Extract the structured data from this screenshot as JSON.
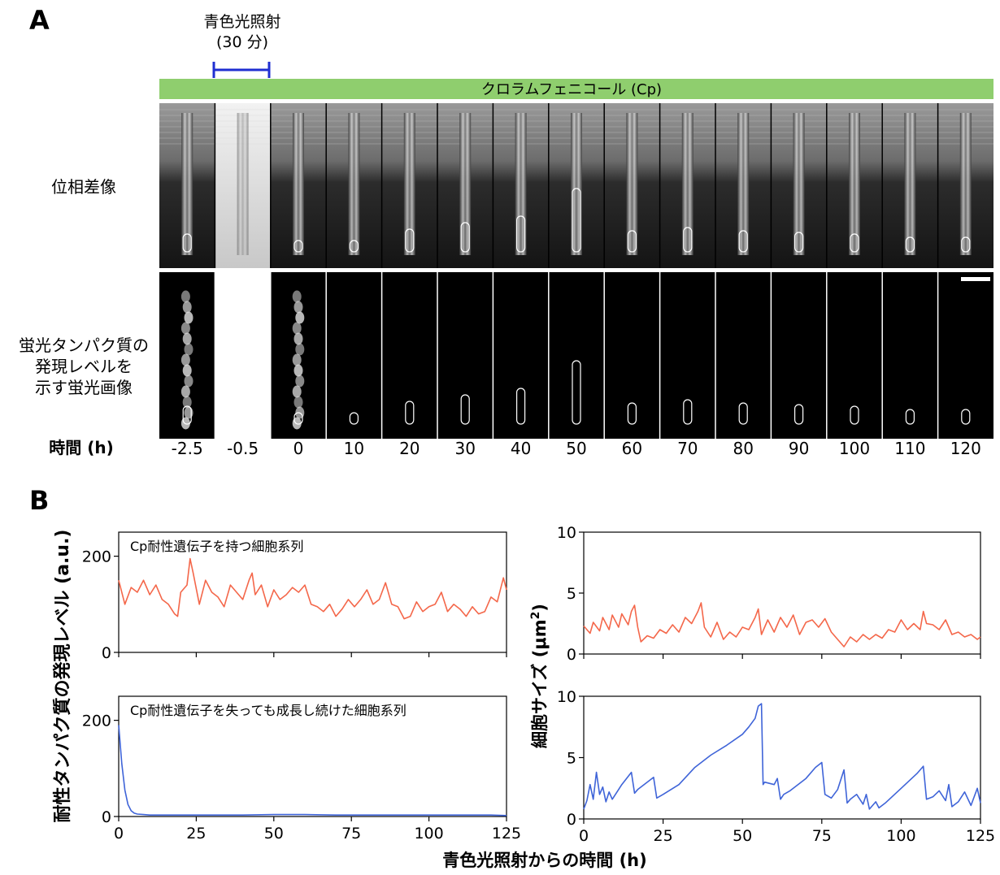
{
  "panel_a": {
    "letter": "A",
    "illumination_label_line1": "青色光照射",
    "illumination_label_line2": "(30 分)",
    "cp_bar_label": "クロラムフェニコール (Cp)",
    "row_phase_label": "位相差像",
    "row_fluor_line1": "蛍光タンパク質の",
    "row_fluor_line2": "発現レベルを",
    "row_fluor_line3": "示す蛍光画像",
    "time_label": "時間 (h)",
    "times": [
      "-2.5",
      "-0.5",
      "0",
      "10",
      "20",
      "30",
      "40",
      "50",
      "60",
      "70",
      "80",
      "90",
      "100",
      "110",
      "120"
    ],
    "fluor_visible": [
      true,
      false,
      true,
      false,
      false,
      false,
      false,
      false,
      false,
      false,
      false,
      false,
      false,
      false,
      false
    ],
    "colors": {
      "cp_bar": "#8fce6e",
      "illumination_bar": "#1f2fd1",
      "outline": "#ffffff"
    }
  },
  "panel_b": {
    "letter": "B",
    "ylabel_left": "耐性タンパク質の発現レベル (a.u.)",
    "ylabel_right_prefix": "細胞サイズ (μm",
    "ylabel_right_sup": "2",
    "ylabel_right_suffix": ")",
    "xlabel": "青色光照射からの時間 (h)",
    "colors": {
      "retained": "#f4674a",
      "lost": "#3f64d8"
    }
  },
  "chart_data": [
    {
      "type": "line",
      "annotation": "Cp耐性遺伝子を持つ細胞系列",
      "xlim": [
        0,
        125
      ],
      "ylim": [
        0,
        250
      ],
      "xticks": [
        0,
        25,
        50,
        75,
        100,
        125
      ],
      "yticks": [
        0,
        200
      ],
      "show_xtick_labels": false,
      "color": "#f4674a",
      "x": [
        0,
        2,
        4,
        6,
        8,
        10,
        12,
        14,
        16,
        18,
        19,
        20,
        22,
        23,
        24,
        26,
        28,
        30,
        32,
        34,
        36,
        38,
        40,
        42,
        43,
        44,
        46,
        48,
        50,
        52,
        54,
        56,
        58,
        60,
        62,
        64,
        66,
        68,
        70,
        72,
        74,
        76,
        78,
        80,
        82,
        84,
        86,
        88,
        90,
        92,
        94,
        96,
        98,
        100,
        102,
        104,
        106,
        108,
        110,
        112,
        114,
        116,
        118,
        120,
        122,
        124,
        125
      ],
      "y": [
        150,
        100,
        135,
        125,
        150,
        120,
        140,
        110,
        100,
        80,
        75,
        125,
        140,
        195,
        165,
        100,
        150,
        125,
        115,
        95,
        140,
        125,
        110,
        150,
        165,
        120,
        140,
        95,
        130,
        110,
        120,
        135,
        125,
        140,
        100,
        95,
        85,
        100,
        75,
        90,
        110,
        95,
        110,
        130,
        100,
        110,
        145,
        100,
        95,
        70,
        75,
        105,
        85,
        95,
        100,
        125,
        85,
        100,
        90,
        75,
        95,
        80,
        85,
        115,
        105,
        155,
        130
      ]
    },
    {
      "type": "line",
      "annotation": "Cp耐性遺伝子を失っても成長し続けた細胞系列",
      "xlim": [
        0,
        125
      ],
      "ylim": [
        0,
        250
      ],
      "xticks": [
        0,
        25,
        50,
        75,
        100,
        125
      ],
      "yticks": [
        0,
        200
      ],
      "show_xtick_labels": true,
      "color": "#3f64d8",
      "x": [
        0,
        0.5,
        1,
        2,
        3,
        4,
        5,
        6,
        8,
        10,
        15,
        20,
        30,
        40,
        50,
        60,
        70,
        80,
        90,
        100,
        110,
        120,
        125
      ],
      "y": [
        190,
        150,
        110,
        55,
        25,
        12,
        7,
        5,
        4,
        3,
        3,
        3,
        3,
        3,
        4,
        4,
        3,
        3,
        3,
        3,
        3,
        3,
        2
      ]
    },
    {
      "type": "line",
      "xlim": [
        0,
        125
      ],
      "ylim": [
        0,
        10
      ],
      "xticks": [
        0,
        25,
        50,
        75,
        100,
        125
      ],
      "yticks": [
        0,
        5,
        10
      ],
      "show_xtick_labels": false,
      "color": "#f4674a",
      "x": [
        0,
        2,
        3,
        5,
        6,
        8,
        9,
        11,
        12,
        14,
        15,
        16,
        17,
        18,
        20,
        22,
        24,
        26,
        28,
        30,
        32,
        34,
        36,
        37,
        38,
        40,
        42,
        44,
        46,
        48,
        50,
        52,
        54,
        55,
        56,
        58,
        60,
        62,
        64,
        66,
        68,
        70,
        72,
        74,
        76,
        78,
        80,
        82,
        84,
        86,
        88,
        90,
        92,
        94,
        96,
        98,
        100,
        102,
        104,
        106,
        107,
        108,
        110,
        112,
        114,
        116,
        118,
        120,
        122,
        124,
        125
      ],
      "y": [
        2.3,
        1.7,
        2.6,
        1.9,
        3.0,
        2.0,
        3.2,
        2.2,
        3.3,
        2.4,
        3.5,
        4.0,
        2.2,
        1.0,
        1.5,
        1.3,
        2.0,
        1.7,
        2.4,
        1.8,
        3.0,
        2.5,
        3.5,
        4.2,
        2.2,
        1.4,
        2.6,
        1.2,
        1.8,
        1.4,
        2.2,
        2.0,
        3.0,
        3.7,
        1.6,
        2.8,
        1.8,
        3.0,
        2.2,
        3.2,
        1.6,
        2.6,
        2.8,
        2.2,
        2.9,
        1.8,
        1.2,
        0.6,
        1.4,
        1.0,
        1.6,
        1.2,
        1.6,
        1.3,
        2.0,
        1.8,
        2.8,
        2.0,
        2.5,
        2.0,
        3.5,
        2.5,
        2.4,
        2.0,
        2.8,
        1.6,
        1.8,
        1.4,
        1.6,
        1.2,
        1.4
      ]
    },
    {
      "type": "line",
      "xlim": [
        0,
        125
      ],
      "ylim": [
        0,
        10
      ],
      "xticks": [
        0,
        25,
        50,
        75,
        100,
        125
      ],
      "yticks": [
        0,
        5,
        10
      ],
      "show_xtick_labels": true,
      "color": "#3f64d8",
      "x": [
        0,
        1,
        2,
        3,
        4,
        5,
        6,
        7,
        8,
        9,
        12,
        15,
        16,
        17,
        20,
        22,
        23,
        25,
        30,
        35,
        40,
        45,
        50,
        52,
        54,
        55,
        56,
        56.5,
        57,
        60,
        61,
        62,
        63,
        65,
        70,
        73,
        75,
        76,
        78,
        80,
        82,
        83,
        84,
        86,
        88,
        89,
        90,
        92,
        93,
        95,
        100,
        105,
        107,
        108,
        110,
        112,
        114,
        115,
        116,
        118,
        120,
        122,
        124,
        125
      ],
      "y": [
        0.8,
        1.5,
        2.8,
        1.6,
        3.8,
        2.0,
        2.6,
        1.4,
        2.2,
        1.6,
        2.8,
        3.8,
        2.1,
        2.4,
        3.0,
        3.4,
        1.7,
        2.0,
        2.8,
        4.2,
        5.2,
        6.0,
        6.9,
        7.5,
        8.2,
        9.2,
        9.4,
        2.8,
        3.0,
        2.8,
        3.3,
        1.6,
        2.0,
        2.3,
        3.3,
        4.2,
        4.6,
        2.0,
        1.7,
        2.4,
        4.0,
        1.3,
        1.6,
        2.0,
        1.2,
        2.0,
        0.8,
        1.4,
        0.9,
        1.3,
        2.5,
        3.7,
        4.3,
        1.6,
        1.8,
        2.3,
        1.5,
        2.8,
        1.0,
        1.4,
        2.2,
        1.1,
        2.5,
        1.3
      ]
    }
  ]
}
